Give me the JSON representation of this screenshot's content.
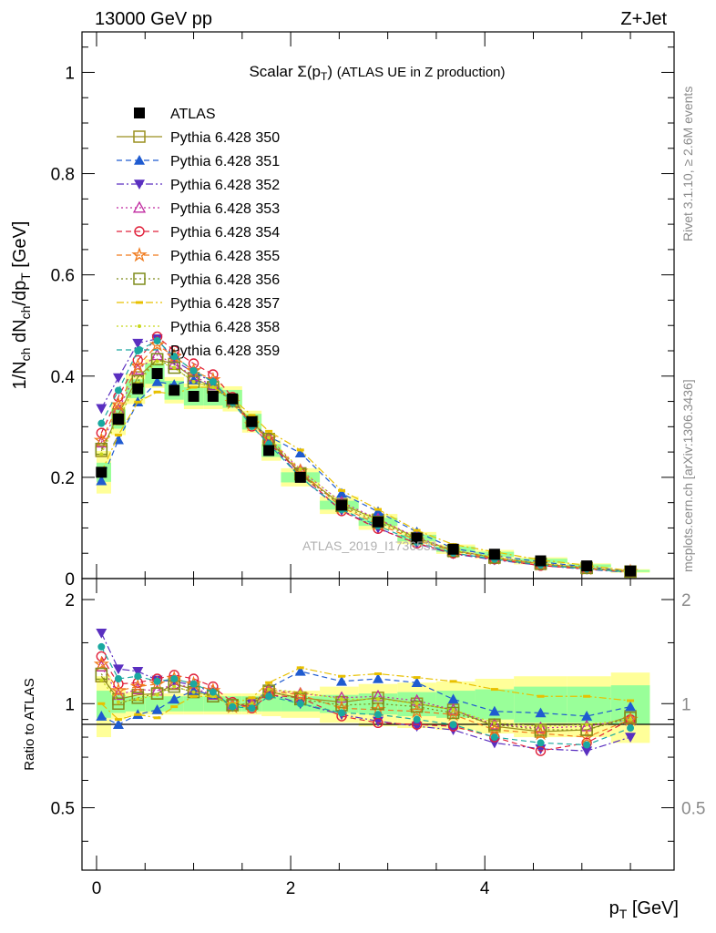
{
  "header": {
    "left_label": "13000 GeV pp",
    "right_label": "Z+Jet"
  },
  "side_labels": {
    "rivet": "Rivet 3.1.10, ≥ 2.6M events",
    "mcplots": "mcplots.cern.ch [arXiv:1306.3436]"
  },
  "watermark": "ATLAS_2019_I1736531",
  "chart_data": {
    "type": "line",
    "title": "Scalar Σ(p_T) (ATLAS UE in Z production)",
    "xlabel": "p_T [GeV]",
    "ylabel": "1/N_ch dN_ch/dp_T [GeV]",
    "ratio_ylabel": "Ratio to ATLAS",
    "xlim": [
      -0.15,
      5.95
    ],
    "ylim": [
      0,
      1.08
    ],
    "ratio_ylim": [
      0.33,
      2.3
    ],
    "x_ticks": [
      "0",
      "2",
      "4"
    ],
    "y_ticks": [
      "0",
      "0.2",
      "0.4",
      "0.6",
      "0.8",
      "1"
    ],
    "ratio_ticks": [
      "0.5",
      "1",
      "2"
    ],
    "x": [
      0.05,
      0.225,
      0.425,
      0.625,
      0.8,
      1.0,
      1.2,
      1.4,
      1.6,
      1.775,
      2.1,
      2.525,
      2.9,
      3.3,
      3.675,
      4.1,
      4.575,
      5.05,
      5.5
    ],
    "x_edges": [
      0.0,
      0.15,
      0.3,
      0.5,
      0.7,
      0.9,
      1.1,
      1.3,
      1.5,
      1.7,
      1.9,
      2.3,
      2.7,
      3.1,
      3.5,
      3.9,
      4.3,
      4.85,
      5.3,
      5.7
    ],
    "atlas": [
      0.21,
      0.315,
      0.375,
      0.405,
      0.372,
      0.36,
      0.36,
      0.355,
      0.31,
      0.253,
      0.2,
      0.145,
      0.112,
      0.08,
      0.058,
      0.048,
      0.035,
      0.025,
      0.015
    ],
    "uncertainty_inner": [
      0.09,
      0.06,
      0.05,
      0.05,
      0.05,
      0.05,
      0.05,
      0.05,
      0.05,
      0.05,
      0.05,
      0.06,
      0.07,
      0.08,
      0.09,
      0.1,
      0.12,
      0.12,
      0.13
    ],
    "uncertainty_outer": [
      0.2,
      0.1,
      0.08,
      0.07,
      0.07,
      0.07,
      0.07,
      0.07,
      0.07,
      0.08,
      0.09,
      0.12,
      0.14,
      0.15,
      0.16,
      0.18,
      0.2,
      0.2,
      0.23
    ],
    "series": [
      {
        "name": "ATLAS",
        "color": "#000000",
        "marker": "filled-square",
        "line": "none"
      },
      {
        "name": "Pythia 6.428 350",
        "color": "#9a8f1f",
        "marker": "open-square",
        "line": "solid",
        "ratio": [
          1.2,
          1.03,
          1.06,
          1.07,
          1.14,
          1.1,
          1.05,
          0.99,
          1.0,
          1.08,
          1.04,
          1.01,
          1.04,
          1.0,
          0.96,
          0.86,
          0.83,
          0.84,
          0.92
        ]
      },
      {
        "name": "Pythia 6.428 351",
        "color": "#1f5bd0",
        "marker": "filled-triangle-up",
        "line": "dashed",
        "ratio": [
          0.92,
          0.87,
          0.93,
          0.96,
          1.03,
          1.09,
          1.06,
          0.98,
          0.99,
          1.11,
          1.24,
          1.16,
          1.18,
          1.15,
          1.03,
          0.95,
          0.94,
          0.92,
          0.98
        ]
      },
      {
        "name": "Pythia 6.428 352",
        "color": "#5a2fc0",
        "marker": "filled-triangle-down",
        "line": "dashdot",
        "ratio": [
          1.6,
          1.26,
          1.24,
          1.17,
          1.16,
          1.13,
          1.08,
          0.98,
          1.0,
          1.07,
          1.0,
          0.93,
          0.89,
          0.86,
          0.84,
          0.77,
          0.74,
          0.73,
          0.8
        ]
      },
      {
        "name": "Pythia 6.428 353",
        "color": "#c02aa0",
        "marker": "open-triangle-up",
        "line": "dotted",
        "ratio": [
          1.28,
          1.06,
          1.1,
          1.09,
          1.14,
          1.11,
          1.06,
          0.99,
          1.0,
          1.1,
          1.07,
          1.04,
          1.05,
          1.02,
          0.96,
          0.87,
          0.85,
          0.86,
          0.9
        ]
      },
      {
        "name": "Pythia 6.428 354",
        "color": "#e0203a",
        "marker": "open-circle",
        "line": "dashed",
        "ratio": [
          1.37,
          1.14,
          1.15,
          1.18,
          1.21,
          1.18,
          1.12,
          1.01,
          0.97,
          1.06,
          1.04,
          0.92,
          0.88,
          0.87,
          0.86,
          0.8,
          0.73,
          0.77,
          0.9
        ]
      },
      {
        "name": "Pythia 6.428 355",
        "color": "#f07a1c",
        "marker": "open-star",
        "line": "dashed",
        "ratio": [
          1.3,
          1.09,
          1.12,
          1.14,
          1.18,
          1.14,
          1.09,
          0.98,
          0.98,
          1.09,
          1.06,
          0.97,
          0.96,
          0.95,
          0.93,
          0.84,
          0.82,
          0.8,
          0.9
        ]
      },
      {
        "name": "Pythia 6.428 356",
        "color": "#7f8c1a",
        "marker": "open-square",
        "line": "dotted",
        "ratio": [
          1.22,
          1.0,
          1.04,
          1.07,
          1.12,
          1.08,
          1.05,
          0.99,
          1.0,
          1.09,
          1.03,
          0.99,
          1.0,
          0.98,
          0.94,
          0.87,
          0.84,
          0.84,
          0.91
        ]
      },
      {
        "name": "Pythia 6.428 357",
        "color": "#e8c000",
        "marker": "dash",
        "line": "dashdot",
        "ratio": [
          1.0,
          0.9,
          0.93,
          0.91,
          0.98,
          1.05,
          1.05,
          1.0,
          1.04,
          1.15,
          1.27,
          1.2,
          1.22,
          1.19,
          1.16,
          1.1,
          1.05,
          1.05,
          1.02
        ]
      },
      {
        "name": "Pythia 6.428 358",
        "color": "#c8d81c",
        "marker": "dot",
        "line": "dotted",
        "ratio": [
          1.17,
          1.01,
          1.03,
          1.06,
          1.12,
          1.08,
          1.05,
          0.99,
          1.0,
          1.1,
          1.08,
          1.03,
          1.03,
          1.0,
          0.96,
          0.88,
          0.86,
          0.87,
          0.9
        ]
      },
      {
        "name": "Pythia 6.428 359",
        "color": "#1aa8a0",
        "marker": "filled-circle",
        "line": "dashed",
        "ratio": [
          1.46,
          1.18,
          1.2,
          1.16,
          1.18,
          1.14,
          1.08,
          0.98,
          0.97,
          1.05,
          1.0,
          0.94,
          0.93,
          0.9,
          0.87,
          0.8,
          0.77,
          0.76,
          0.85
        ]
      }
    ]
  }
}
